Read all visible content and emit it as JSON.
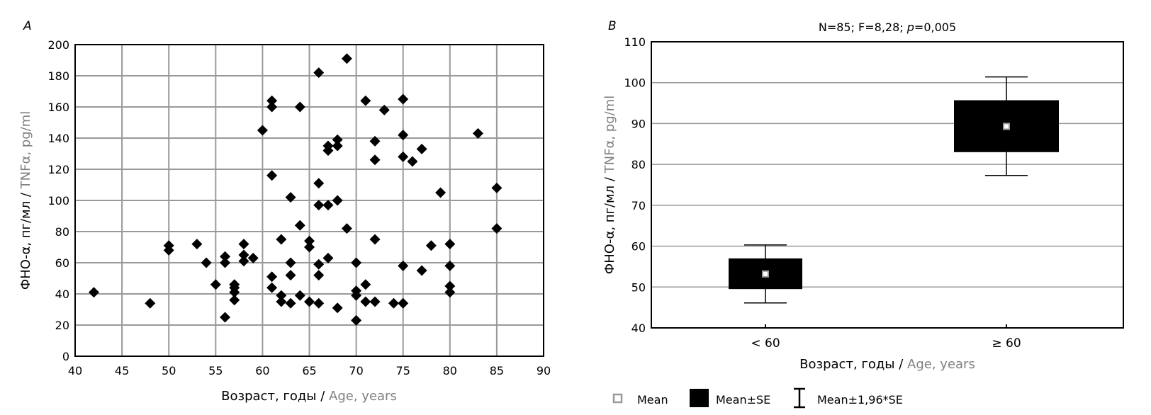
{
  "chart_data": [
    {
      "panel_label": "A",
      "type": "scatter",
      "xlabel_ru": "Возраст, годы / ",
      "xlabel_en": "Age, years",
      "ylabel_ru": "ФНО-α, пг/мл / ",
      "ylabel_en": "TNFα, pg/ml",
      "xlim": [
        40,
        90
      ],
      "ylim": [
        0,
        200
      ],
      "xticks": [
        "40",
        "45",
        "50",
        "55",
        "60",
        "65",
        "70",
        "75",
        "80",
        "85",
        "90"
      ],
      "yticks": [
        "0",
        "20",
        "40",
        "60",
        "80",
        "100",
        "120",
        "140",
        "160",
        "180",
        "200"
      ],
      "grid": true,
      "marker": "diamond",
      "points": [
        [
          42,
          41
        ],
        [
          48,
          34
        ],
        [
          50,
          71
        ],
        [
          50,
          68
        ],
        [
          53,
          72
        ],
        [
          54,
          60
        ],
        [
          55,
          46
        ],
        [
          56,
          64
        ],
        [
          56,
          60
        ],
        [
          56,
          25
        ],
        [
          57,
          46
        ],
        [
          57,
          44
        ],
        [
          57,
          41
        ],
        [
          57,
          36
        ],
        [
          58,
          72
        ],
        [
          58,
          65
        ],
        [
          58,
          61
        ],
        [
          59,
          63
        ],
        [
          60,
          145
        ],
        [
          61,
          164
        ],
        [
          61,
          160
        ],
        [
          61,
          116
        ],
        [
          61,
          51
        ],
        [
          61,
          44
        ],
        [
          62,
          75
        ],
        [
          62,
          39
        ],
        [
          62,
          35
        ],
        [
          63,
          102
        ],
        [
          63,
          60
        ],
        [
          63,
          52
        ],
        [
          63,
          34
        ],
        [
          64,
          160
        ],
        [
          64,
          84
        ],
        [
          64,
          39
        ],
        [
          65,
          74
        ],
        [
          65,
          70
        ],
        [
          65,
          35
        ],
        [
          66,
          182
        ],
        [
          66,
          111
        ],
        [
          66,
          97
        ],
        [
          66,
          59
        ],
        [
          66,
          52
        ],
        [
          66,
          34
        ],
        [
          67,
          135
        ],
        [
          67,
          132
        ],
        [
          67,
          97
        ],
        [
          67,
          63
        ],
        [
          68,
          139
        ],
        [
          68,
          135
        ],
        [
          68,
          100
        ],
        [
          68,
          31
        ],
        [
          69,
          191
        ],
        [
          69,
          82
        ],
        [
          70,
          60
        ],
        [
          70,
          42
        ],
        [
          70,
          39
        ],
        [
          70,
          23
        ],
        [
          71,
          164
        ],
        [
          71,
          46
        ],
        [
          71,
          35
        ],
        [
          72,
          138
        ],
        [
          72,
          126
        ],
        [
          72,
          75
        ],
        [
          72,
          35
        ],
        [
          73,
          158
        ],
        [
          74,
          34
        ],
        [
          75,
          165
        ],
        [
          75,
          142
        ],
        [
          75,
          128
        ],
        [
          75,
          58
        ],
        [
          75,
          34
        ],
        [
          76,
          125
        ],
        [
          77,
          133
        ],
        [
          77,
          55
        ],
        [
          78,
          71
        ],
        [
          79,
          105
        ],
        [
          80,
          72
        ],
        [
          80,
          58
        ],
        [
          80,
          45
        ],
        [
          80,
          41
        ],
        [
          83,
          143
        ],
        [
          85,
          108
        ],
        [
          85,
          82
        ]
      ]
    },
    {
      "panel_label": "B",
      "type": "box",
      "title": "N=85; F=8,28; ",
      "title_p": "p",
      "title_pval": "=0,005",
      "xlabel_ru": "Возраст, годы / ",
      "xlabel_en": "Age, years",
      "ylabel_ru": "ФНО-α, пг/мл / ",
      "ylabel_en": "TNFα, pg/ml",
      "ylim": [
        40,
        110
      ],
      "yticks": [
        "40",
        "50",
        "60",
        "70",
        "80",
        "90",
        "100",
        "110"
      ],
      "grid": true,
      "categories": [
        "< 60",
        "≥ 60"
      ],
      "mean": [
        53.2,
        89.3
      ],
      "se_low": [
        49.5,
        83.0
      ],
      "se_high": [
        57.0,
        95.7
      ],
      "ci_low": [
        46.1,
        77.3
      ],
      "ci_high": [
        60.3,
        101.4
      ],
      "legend": {
        "placement": "bottom",
        "mean": "Mean",
        "se": "Mean±SE",
        "ci": "Mean±1,96*SE"
      }
    }
  ],
  "colors": {
    "marker": "#000000",
    "grid": "#999999",
    "english_text": "#808080",
    "mean_marker": "#9a9a9a"
  }
}
